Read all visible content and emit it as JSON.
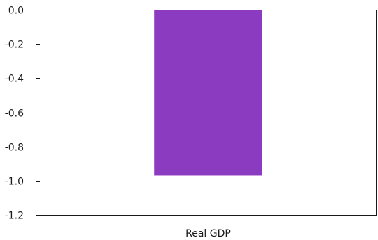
{
  "chart_data": {
    "type": "bar",
    "categories": [
      "Real GDP"
    ],
    "series": [
      {
        "values": [
          -0.97
        ]
      }
    ],
    "title": "",
    "xlabel": "",
    "ylabel": "",
    "ylim": [
      -1.2,
      0.0
    ],
    "yticks": [
      0.0,
      -0.2,
      -0.4,
      -0.6,
      -0.8,
      -1.0,
      -1.2
    ],
    "ytick_labels": [
      "0.0",
      "-0.2",
      "-0.4",
      "-0.6",
      "-0.8",
      "-1.0",
      "-1.2"
    ],
    "grid": false,
    "legend": "none",
    "colors": {
      "bar": "#8b3bbf",
      "axis": "#1a1a1a"
    }
  }
}
